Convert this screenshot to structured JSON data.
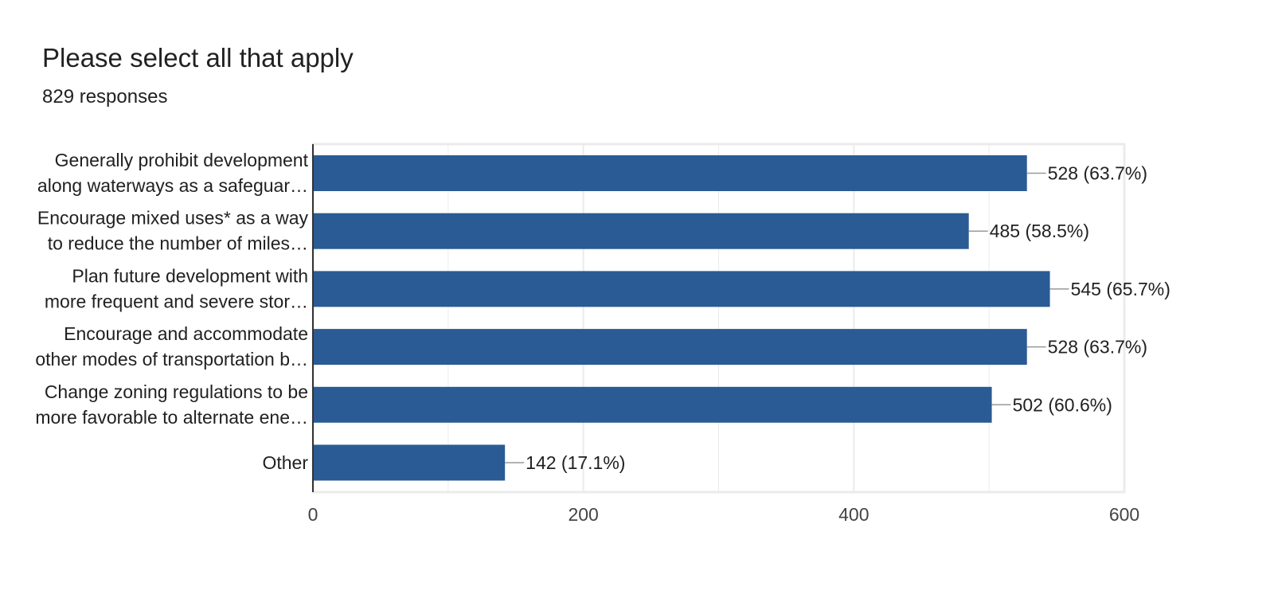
{
  "header": {
    "title": "Please select all that apply",
    "subtitle": "829 responses"
  },
  "chart_data": {
    "type": "bar",
    "orientation": "horizontal",
    "title": "Please select all that apply",
    "subtitle": "829 responses",
    "categories": [
      [
        "Generally prohibit development",
        "along waterways as a safeguar…"
      ],
      [
        "Encourage mixed uses* as a way",
        "to reduce the number of miles…"
      ],
      [
        "Plan future development with",
        "more frequent and severe stor…"
      ],
      [
        "Encourage and accommodate",
        "other modes of transportation b…"
      ],
      [
        "Change zoning regulations to be",
        "more favorable to alternate ene…"
      ],
      [
        "Other"
      ]
    ],
    "values": [
      528,
      485,
      545,
      528,
      502,
      142
    ],
    "data_labels": [
      "528 (63.7%)",
      "485 (58.5%)",
      "545 (65.7%)",
      "528 (63.7%)",
      "502 (60.6%)",
      "142 (17.1%)"
    ],
    "xlim": [
      0,
      600
    ],
    "xticks": [
      0,
      200,
      400,
      600
    ],
    "grid": true,
    "legend": "none",
    "colors": {
      "bar": "#2a5b94",
      "grid": "#ebebeb",
      "axis": "#333333",
      "leader": "#999999",
      "text": "#212121",
      "tick_text": "#444444"
    }
  }
}
